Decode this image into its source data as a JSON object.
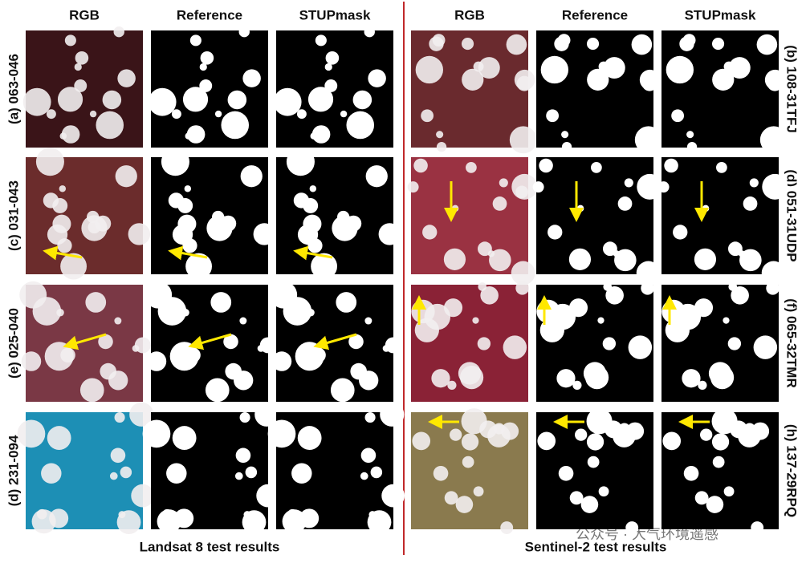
{
  "left": {
    "headers": [
      "RGB",
      "Reference",
      "STUPmask"
    ],
    "rows": [
      "(a) 063-046",
      "(c) 031-043",
      "(e) 025-040",
      "(d) 231-094"
    ],
    "caption": "Landsat 8 test results"
  },
  "right": {
    "headers": [
      "RGB",
      "Reference",
      "STUPmask"
    ],
    "rows": [
      "(b) 108-31TFJ",
      "(d) 051-31UDP",
      "(f) 065-32TMR",
      "(h) 137-29RPQ"
    ],
    "caption": "Sentinel-2 test results"
  },
  "watermark": "公众号 · 大气环境遥感"
}
